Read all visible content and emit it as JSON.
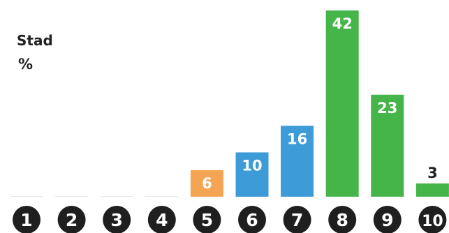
{
  "chart_data": {
    "type": "bar",
    "title": "Stad",
    "ylabel": "%",
    "categories": [
      "1",
      "2",
      "3",
      "4",
      "5",
      "6",
      "7",
      "8",
      "9",
      "10"
    ],
    "values": [
      0,
      0,
      0,
      0,
      6,
      10,
      16,
      42,
      23,
      3
    ],
    "show_value_labels": [
      false,
      false,
      false,
      false,
      true,
      true,
      true,
      true,
      true,
      true
    ],
    "bar_colors": [
      "#f4a553",
      "#f4a553",
      "#f4a553",
      "#f4a553",
      "#f4a553",
      "#3d9bd8",
      "#3d9bd8",
      "#46b549",
      "#46b549",
      "#46b549"
    ],
    "value_label_colors": [
      "#ffffff",
      "#ffffff",
      "#ffffff",
      "#ffffff",
      "#ffffff",
      "#ffffff",
      "#ffffff",
      "#ffffff",
      "#ffffff",
      "#222222"
    ],
    "category_badge_color": "#1f1f1f",
    "baseline_color": "#e6e6e6",
    "ylim": [
      0,
      42
    ],
    "grid": false,
    "legend": "none"
  }
}
